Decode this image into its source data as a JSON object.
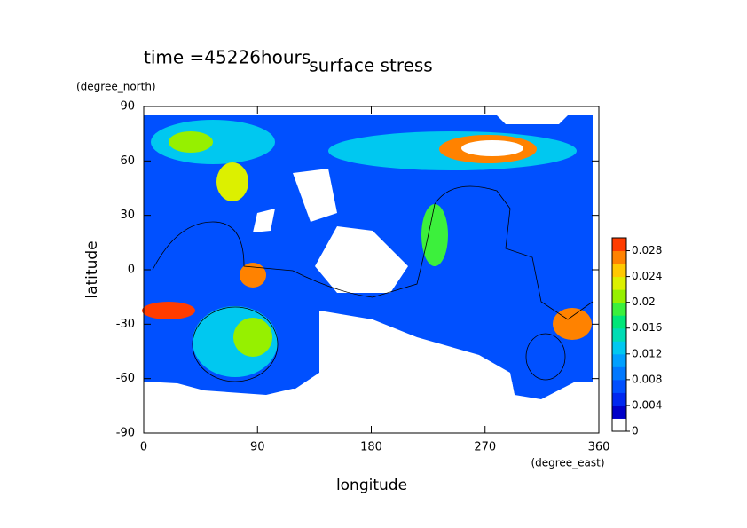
{
  "chart_data": {
    "type": "contour",
    "title": "surface stress",
    "subtitle": "time =45226hours",
    "x_label": "longitude",
    "x_units": "(degree_east)",
    "y_label": "latitude",
    "y_units": "(degree_north)",
    "xlim": [
      0,
      360
    ],
    "xticks": [
      0,
      90,
      180,
      270,
      360
    ],
    "ylim": [
      -90,
      90
    ],
    "yticks": [
      90,
      60,
      30,
      0,
      -30,
      -60,
      -90
    ],
    "colorbar": {
      "lim": [
        0,
        0.03
      ],
      "ticks": [
        0,
        0.004,
        0.008,
        0.012,
        0.016,
        0.02,
        0.024,
        0.028
      ],
      "colors": [
        "#ffffff",
        "#0000c8",
        "#0028f0",
        "#0050ff",
        "#0078ff",
        "#00a0ff",
        "#00c8f0",
        "#00dcb4",
        "#00e678",
        "#3cf03c",
        "#96f000",
        "#dcf000",
        "#ffc800",
        "#ff8200",
        "#ff3c00"
      ]
    }
  }
}
